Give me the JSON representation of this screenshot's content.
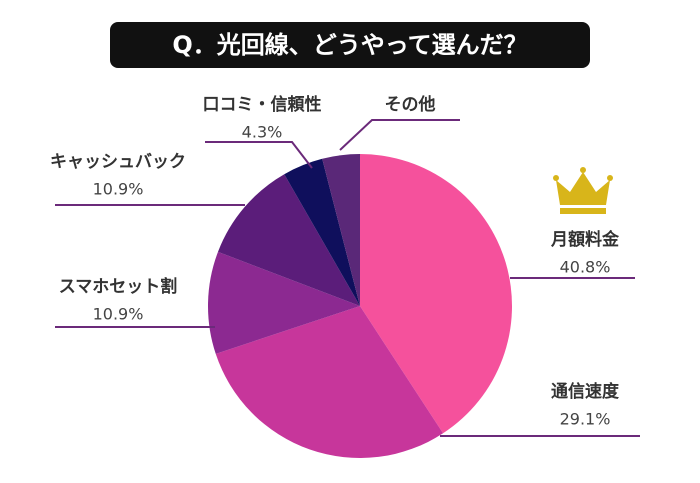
{
  "chart_data": {
    "type": "pie",
    "title": "Q．光回線、どうやって選んだ？",
    "categories": [
      "月額料金",
      "通信速度",
      "スマホセット割",
      "キャッシュバック",
      "口コミ・信頼性",
      "その他"
    ],
    "values": [
      40.8,
      29.1,
      10.9,
      10.9,
      4.3,
      4.0
    ],
    "value_labels": [
      "40.8%",
      "29.1%",
      "10.9%",
      "10.9%",
      "4.3%",
      null
    ],
    "colors": [
      "#f5519c",
      "#c7369b",
      "#8c2991",
      "#5b1d7a",
      "#0f0f5c",
      "#5a2878"
    ]
  }
}
